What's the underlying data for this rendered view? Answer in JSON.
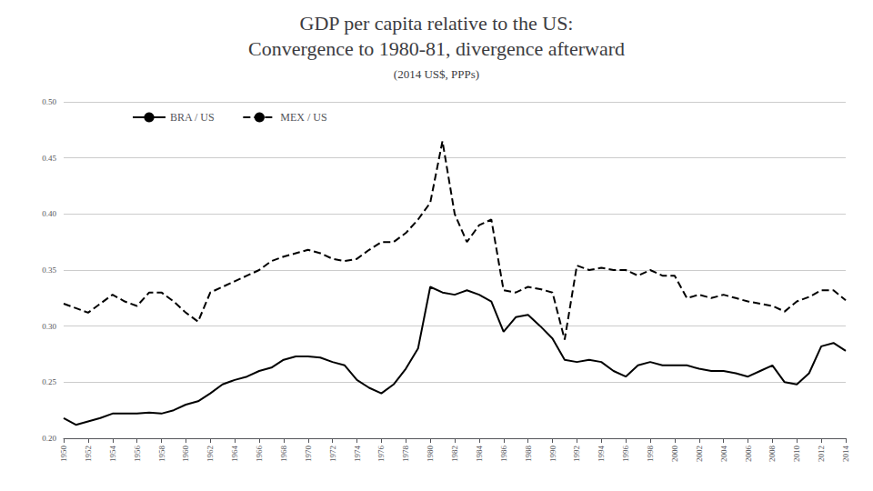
{
  "chart_data": {
    "type": "line",
    "title": "GDP per capita relative to the US:\nConvergence to 1980-81, divergence afterward",
    "subtitle": "(2014 US$, PPPs)",
    "x": [
      1950,
      1951,
      1952,
      1953,
      1954,
      1955,
      1956,
      1957,
      1958,
      1959,
      1960,
      1961,
      1962,
      1963,
      1964,
      1965,
      1966,
      1967,
      1968,
      1969,
      1970,
      1971,
      1972,
      1973,
      1974,
      1975,
      1976,
      1977,
      1978,
      1979,
      1980,
      1981,
      1982,
      1983,
      1984,
      1985,
      1986,
      1987,
      1988,
      1989,
      1990,
      1991,
      1992,
      1993,
      1994,
      1995,
      1996,
      1997,
      1998,
      1999,
      2000,
      2001,
      2002,
      2003,
      2004,
      2005,
      2006,
      2007,
      2008,
      2009,
      2010,
      2011,
      2012,
      2013,
      2014
    ],
    "series": [
      {
        "name": "BRA / US",
        "color": "#000000",
        "line_style": "solid",
        "values": [
          0.218,
          0.212,
          0.215,
          0.218,
          0.222,
          0.222,
          0.222,
          0.223,
          0.222,
          0.225,
          0.23,
          0.233,
          0.24,
          0.248,
          0.252,
          0.255,
          0.26,
          0.263,
          0.27,
          0.273,
          0.273,
          0.272,
          0.268,
          0.265,
          0.252,
          0.245,
          0.24,
          0.248,
          0.262,
          0.28,
          0.335,
          0.33,
          0.328,
          0.332,
          0.328,
          0.322,
          0.295,
          0.308,
          0.31,
          0.3,
          0.289,
          0.27,
          0.268,
          0.27,
          0.268,
          0.26,
          0.255,
          0.265,
          0.268,
          0.265,
          0.265,
          0.265,
          0.262,
          0.26,
          0.26,
          0.258,
          0.255,
          0.26,
          0.265,
          0.25,
          0.248,
          0.258,
          0.282,
          0.285,
          0.278
        ]
      },
      {
        "name": "MEX / US",
        "color": "#000000",
        "line_style": "dashed",
        "values": [
          0.32,
          0.316,
          0.312,
          0.32,
          0.328,
          0.322,
          0.318,
          0.33,
          0.33,
          0.322,
          0.312,
          0.304,
          0.33,
          0.335,
          0.34,
          0.345,
          0.35,
          0.358,
          0.362,
          0.365,
          0.368,
          0.365,
          0.36,
          0.358,
          0.36,
          0.368,
          0.375,
          0.375,
          0.383,
          0.395,
          0.41,
          0.465,
          0.4,
          0.375,
          0.39,
          0.395,
          0.332,
          0.33,
          0.335,
          0.333,
          0.33,
          0.288,
          0.354,
          0.35,
          0.352,
          0.35,
          0.35,
          0.345,
          0.35,
          0.345,
          0.345,
          0.325,
          0.328,
          0.325,
          0.328,
          0.325,
          0.322,
          0.32,
          0.318,
          0.313,
          0.322,
          0.326,
          0.332,
          0.332,
          0.323
        ]
      }
    ],
    "xlim": [
      1950,
      2014
    ],
    "xticks": [
      1950,
      1952,
      1954,
      1956,
      1958,
      1960,
      1962,
      1964,
      1966,
      1968,
      1970,
      1972,
      1974,
      1976,
      1978,
      1980,
      1982,
      1984,
      1986,
      1988,
      1990,
      1992,
      1994,
      1996,
      1998,
      2000,
      2002,
      2004,
      2006,
      2008,
      2010,
      2012,
      2014
    ],
    "ylim": [
      0.2,
      0.5
    ],
    "yticks": [
      {
        "value": 0.2,
        "label": "0.20"
      },
      0.25,
      {
        "value": 0.3,
        "label": "0.30"
      },
      0.35,
      {
        "value": 0.4,
        "label": "0.40"
      },
      0.45,
      {
        "value": 0.5,
        "label": "0.50"
      }
    ],
    "grid": true,
    "legend": "upper left"
  }
}
